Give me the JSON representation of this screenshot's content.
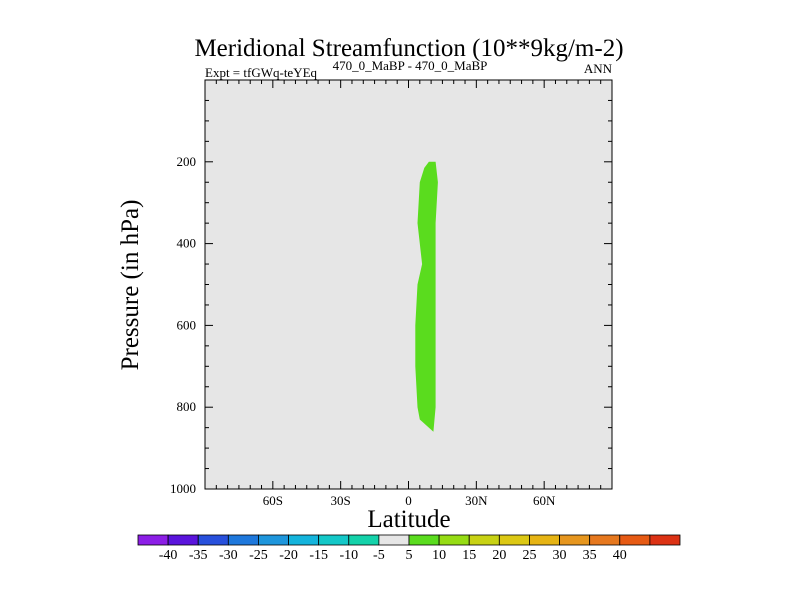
{
  "chart_data": {
    "type": "heatmap",
    "title": "Meridional Streamfunction (10**9kg/m-2)",
    "subtitle_left": "Expt = tfGWq-teYEq",
    "subtitle_center": "470_0_MaBP - 470_0_MaBP",
    "subtitle_right": "ANN",
    "xlabel": "Latitude",
    "ylabel": "Pressure (in hPa)",
    "xlim": [
      -90,
      90
    ],
    "ylim": [
      1000,
      0
    ],
    "x_ticks": [
      {
        "value": -60,
        "label": "60S"
      },
      {
        "value": -30,
        "label": "30S"
      },
      {
        "value": 0,
        "label": "0"
      },
      {
        "value": 30,
        "label": "30N"
      },
      {
        "value": 60,
        "label": "60N"
      }
    ],
    "y_ticks": [
      {
        "value": 200,
        "label": "200"
      },
      {
        "value": 400,
        "label": "400"
      },
      {
        "value": 600,
        "label": "600"
      },
      {
        "value": 800,
        "label": "800"
      },
      {
        "value": 1000,
        "label": "1000"
      }
    ],
    "background_color": "#e6e6e6",
    "region": {
      "level": "5 to 10",
      "color": "#5adc1e",
      "polygon": [
        [
          9,
          200
        ],
        [
          12,
          200
        ],
        [
          13,
          250
        ],
        [
          12,
          350
        ],
        [
          12,
          450
        ],
        [
          12,
          550
        ],
        [
          12,
          650
        ],
        [
          12,
          750
        ],
        [
          12,
          800
        ],
        [
          11,
          860
        ],
        [
          5,
          830
        ],
        [
          4,
          800
        ],
        [
          3,
          700
        ],
        [
          3,
          600
        ],
        [
          4,
          500
        ],
        [
          6,
          450
        ],
        [
          5,
          400
        ],
        [
          4,
          350
        ],
        [
          5,
          250
        ],
        [
          7,
          215
        ]
      ]
    },
    "colorbar": {
      "colors": [
        "#8c1ee6",
        "#5a14dc",
        "#2850dc",
        "#1e78dc",
        "#1e96dc",
        "#14b4dc",
        "#14c8c8",
        "#14d2aa",
        "#e6e6e6",
        "#5adc1e",
        "#96dc14",
        "#c8d214",
        "#dcc814",
        "#e6b414",
        "#e6961e",
        "#e6781e",
        "#e65a14",
        "#dc3214"
      ],
      "labels": [
        "-40",
        "-35",
        "-30",
        "-25",
        "-20",
        "-15",
        "-10",
        "-5",
        "5",
        "10",
        "15",
        "20",
        "25",
        "30",
        "35",
        "40"
      ]
    }
  }
}
